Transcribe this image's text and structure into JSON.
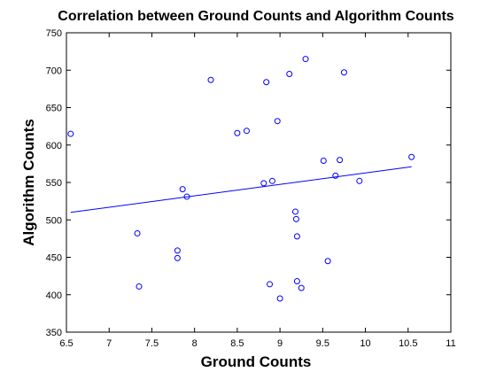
{
  "chart_data": {
    "type": "scatter",
    "title": "Correlation between Ground Counts and Algorithm Counts",
    "xlabel": "Ground Counts",
    "ylabel": "Algorithm Counts",
    "xlim": [
      6.5,
      11
    ],
    "ylim": [
      350,
      750
    ],
    "xticks": [
      "6.5",
      "7",
      "7.5",
      "8",
      "8.5",
      "9",
      "9.5",
      "10",
      "10.5",
      "11"
    ],
    "yticks": [
      "350",
      "400",
      "450",
      "500",
      "550",
      "600",
      "650",
      "700",
      "750"
    ],
    "grid": false,
    "marker_color": "#0000ff",
    "points": [
      {
        "x": 6.55,
        "y": 615
      },
      {
        "x": 7.33,
        "y": 482
      },
      {
        "x": 7.35,
        "y": 411
      },
      {
        "x": 7.8,
        "y": 459
      },
      {
        "x": 7.8,
        "y": 449
      },
      {
        "x": 7.86,
        "y": 541
      },
      {
        "x": 7.91,
        "y": 531
      },
      {
        "x": 8.19,
        "y": 687
      },
      {
        "x": 8.5,
        "y": 616
      },
      {
        "x": 8.61,
        "y": 619
      },
      {
        "x": 8.81,
        "y": 549
      },
      {
        "x": 8.84,
        "y": 684
      },
      {
        "x": 8.88,
        "y": 414
      },
      {
        "x": 8.91,
        "y": 552
      },
      {
        "x": 8.97,
        "y": 632
      },
      {
        "x": 9.0,
        "y": 395
      },
      {
        "x": 9.11,
        "y": 695
      },
      {
        "x": 9.18,
        "y": 511
      },
      {
        "x": 9.19,
        "y": 501
      },
      {
        "x": 9.2,
        "y": 478
      },
      {
        "x": 9.2,
        "y": 418
      },
      {
        "x": 9.25,
        "y": 409
      },
      {
        "x": 9.3,
        "y": 715
      },
      {
        "x": 9.51,
        "y": 579
      },
      {
        "x": 9.56,
        "y": 445
      },
      {
        "x": 9.65,
        "y": 559
      },
      {
        "x": 9.7,
        "y": 580
      },
      {
        "x": 9.75,
        "y": 697
      },
      {
        "x": 9.93,
        "y": 552
      },
      {
        "x": 10.54,
        "y": 584
      }
    ],
    "fit_line": {
      "x": [
        6.55,
        10.54
      ],
      "y": [
        510,
        571
      ]
    }
  }
}
